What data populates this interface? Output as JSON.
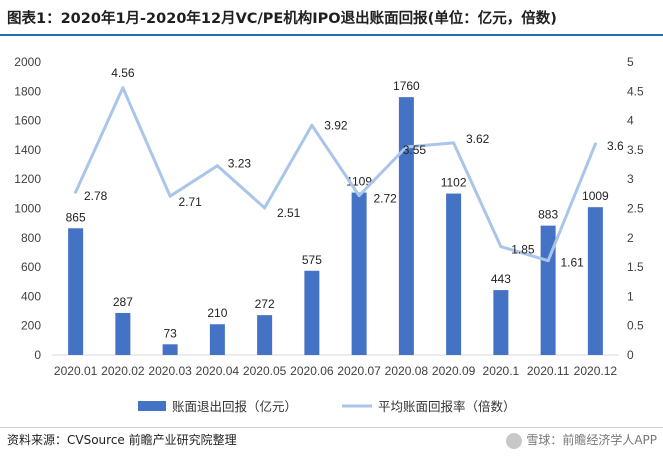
{
  "title": "图表1：2020年1月-2020年12月VC/PE机构IPO退出账面回报(单位：亿元，倍数)",
  "source": "资料来源：CVSource 前瞻产业研究院整理",
  "watermark": "雪球：前瞻经济学人APP",
  "colors": {
    "bar": "#4472c4",
    "line": "#a9c6ea",
    "title_rule": "#1f6fb4"
  },
  "chart_data": {
    "type": "bar",
    "categories": [
      "2020.01",
      "2020.02",
      "2020.03",
      "2020.04",
      "2020.05",
      "2020.06",
      "2020.07",
      "2020.08",
      "2020.09",
      "2020.1",
      "2020.11",
      "2020.12"
    ],
    "series": [
      {
        "name": "账面退出回报（亿元）",
        "type": "bar",
        "axis": "left",
        "values": [
          865,
          287,
          73,
          210,
          272,
          575,
          1109,
          1760,
          1102,
          443,
          883,
          1009
        ]
      },
      {
        "name": "平均账面回报率（倍数）",
        "type": "line",
        "axis": "right",
        "values": [
          2.78,
          4.56,
          2.71,
          3.23,
          2.51,
          3.92,
          2.72,
          3.55,
          3.62,
          1.85,
          1.61,
          3.6
        ]
      }
    ],
    "line_labels": [
      "2.78",
      "4.56",
      "2.71",
      "3.23",
      "2.51",
      "3.92",
      "2.72",
      "3.55",
      "3.62",
      "1.85",
      "1.61",
      "3.6"
    ],
    "ylim_left": [
      0,
      2000
    ],
    "yticks_left": [
      "0",
      "200",
      "400",
      "600",
      "800",
      "1000",
      "1200",
      "1400",
      "1600",
      "1800",
      "2000"
    ],
    "ylim_right": [
      0,
      5
    ],
    "yticks_right": [
      "0",
      "0.5",
      "1",
      "1.5",
      "2",
      "2.5",
      "3",
      "3.5",
      "4",
      "4.5",
      "5"
    ],
    "grid": false,
    "legend": "bottom"
  }
}
